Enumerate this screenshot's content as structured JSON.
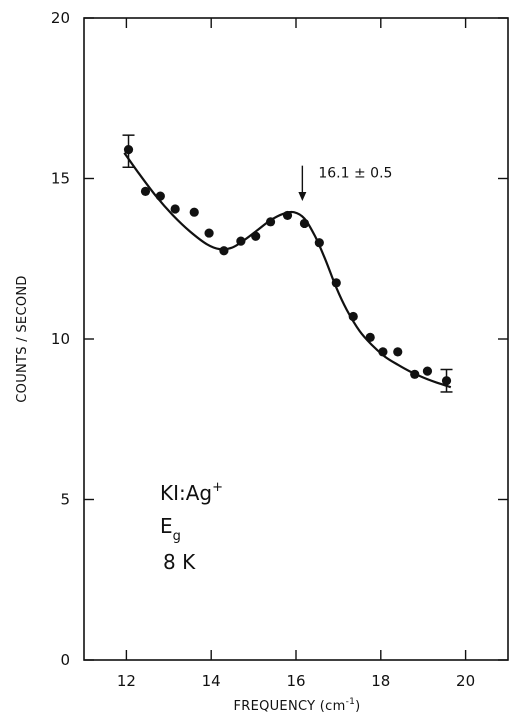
{
  "chart_data": {
    "type": "scatter",
    "xlabel": "FREQUENCY",
    "xlabel_unit_prefix": "(cm",
    "xlabel_unit_exp": "-1",
    "xlabel_unit_suffix": ")",
    "ylabel": "COUNTS / SECOND",
    "xlim": [
      11,
      21
    ],
    "ylim": [
      0,
      20
    ],
    "x_ticks": [
      12,
      14,
      16,
      18,
      20
    ],
    "x_tick_labels": [
      "12",
      "14",
      "16",
      "18",
      "20"
    ],
    "y_ticks": [
      0,
      5,
      10,
      15,
      20
    ],
    "y_tick_labels": [
      "0",
      "5",
      "10",
      "15",
      "20"
    ],
    "grid": false,
    "points": {
      "x": [
        12.05,
        12.45,
        12.8,
        13.15,
        13.6,
        13.95,
        14.3,
        14.7,
        15.05,
        15.4,
        15.8,
        16.2,
        16.55,
        16.95,
        17.35,
        17.75,
        18.05,
        18.4,
        18.8,
        19.1,
        19.55
      ],
      "y": [
        15.9,
        14.6,
        14.45,
        14.05,
        13.95,
        13.3,
        12.75,
        13.05,
        13.2,
        13.65,
        13.85,
        13.6,
        13.0,
        11.75,
        10.7,
        10.05,
        9.6,
        9.6,
        8.9,
        9.0,
        8.7
      ]
    },
    "fit_curve": {
      "x": [
        11.95,
        12.3,
        12.7,
        13.1,
        13.5,
        13.9,
        14.2,
        14.5,
        14.8,
        15.1,
        15.4,
        15.7,
        15.95,
        16.2,
        16.45,
        16.7,
        16.95,
        17.2,
        17.5,
        17.8,
        18.1,
        18.4,
        18.7,
        19.0,
        19.3,
        19.65
      ],
      "y": [
        15.8,
        15.15,
        14.45,
        13.85,
        13.35,
        12.95,
        12.8,
        12.85,
        13.1,
        13.4,
        13.7,
        13.9,
        13.95,
        13.75,
        13.2,
        12.45,
        11.6,
        10.9,
        10.25,
        9.8,
        9.45,
        9.2,
        8.98,
        8.8,
        8.65,
        8.5
      ]
    },
    "error_bars": [
      {
        "x": 12.05,
        "low": 15.35,
        "high": 16.35
      },
      {
        "x": 19.55,
        "low": 8.35,
        "high": 9.05
      }
    ],
    "annotation": {
      "text": "16.1 ± 0.5",
      "x": 16.15,
      "y_tail": 15.4,
      "y_head": 14.3
    },
    "panel_text": {
      "line1_main": "KI:Ag",
      "line1_sup": "+",
      "line2_main": "E",
      "line2_sub": "g",
      "line3": "8 K"
    }
  }
}
